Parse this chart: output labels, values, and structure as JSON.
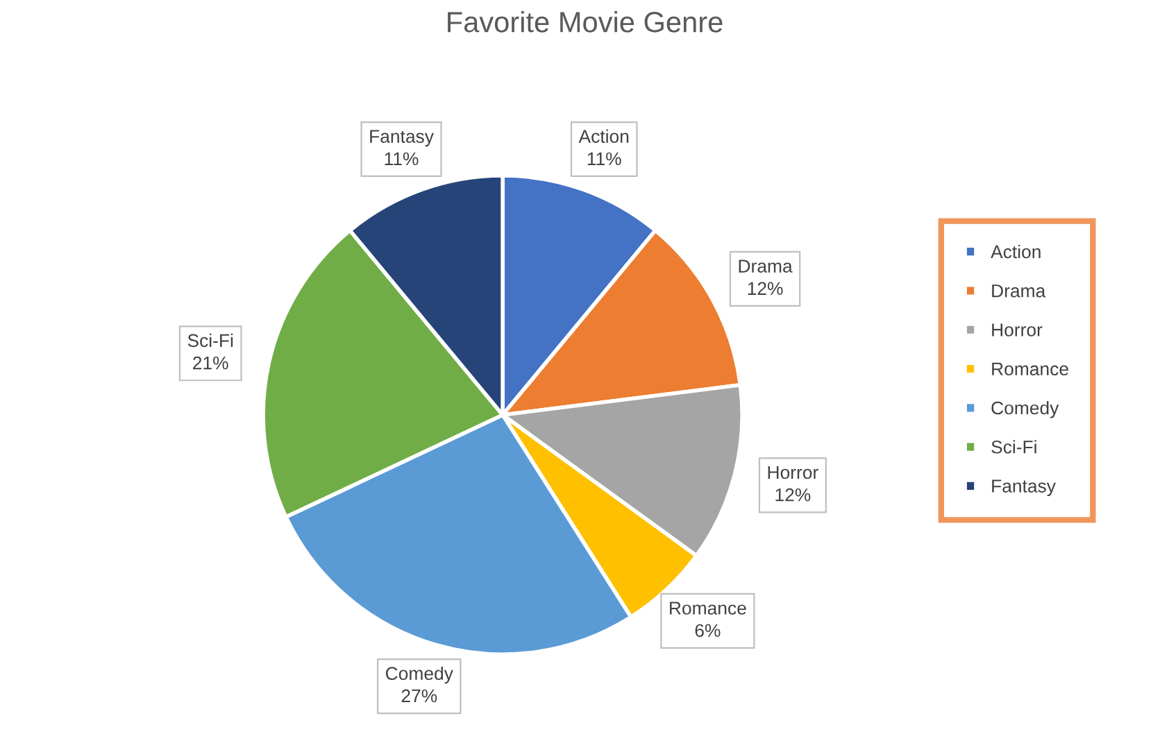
{
  "chart_data": {
    "type": "pie",
    "title": "Favorite Movie Genre",
    "categories": [
      "Action",
      "Drama",
      "Horror",
      "Romance",
      "Comedy",
      "Sci-Fi",
      "Fantasy"
    ],
    "values": [
      11,
      12,
      12,
      6,
      27,
      21,
      11
    ],
    "value_labels": [
      "11%",
      "12%",
      "12%",
      "6%",
      "27%",
      "21%",
      "11%"
    ],
    "colors": [
      "#4472c4",
      "#ed7d31",
      "#a5a5a5",
      "#ffc000",
      "#5b9bd5",
      "#70ad47",
      "#264478"
    ],
    "legend": "right"
  }
}
